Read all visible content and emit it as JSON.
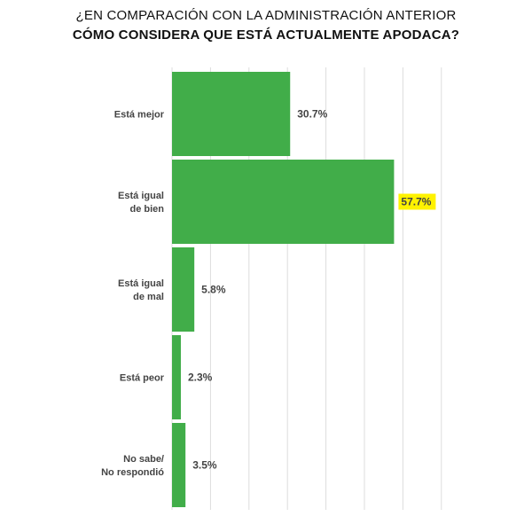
{
  "chart_data": {
    "type": "bar",
    "orientation": "horizontal",
    "title_line1": "¿EN COMPARACIÓN CON LA ADMINISTRACIÓN ANTERIOR",
    "title_line2": "CÓMO CONSIDERA QUE ESTÁ ACTUALMENTE APODACA?",
    "categories": [
      [
        "Está mejor"
      ],
      [
        "Está igual",
        "de bien"
      ],
      [
        "Está igual",
        "de mal"
      ],
      [
        "Está peor"
      ],
      [
        "No sabe/",
        "No respondió"
      ]
    ],
    "values": [
      30.7,
      57.7,
      5.8,
      2.3,
      3.5
    ],
    "value_labels": [
      "30.7%",
      "57.7%",
      "5.8%",
      "2.3%",
      "3.5%"
    ],
    "highlighted_index": 1,
    "xlim": [
      0,
      70
    ],
    "grid": "vertical",
    "colors": {
      "bar": "#41ad49",
      "highlight": "#fff200",
      "grid": "#dddddd",
      "text": "#444444"
    }
  }
}
